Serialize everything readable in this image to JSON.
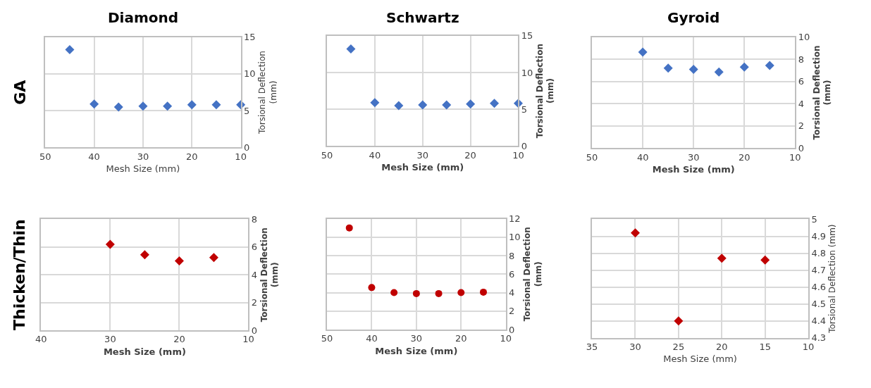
{
  "chart_data": [
    {
      "type": "scatter",
      "title": "Diamond",
      "annotations": [
        "GA"
      ],
      "xlabel": "Mesh Size (mm)",
      "ylabel": "Torsional Deflection\n(mm)",
      "x": [
        45,
        40,
        35,
        30,
        25,
        20,
        15,
        10
      ],
      "series": [
        {
          "color": "#4472c4",
          "values": [
            13.3,
            5.9,
            5.5,
            5.6,
            5.6,
            5.8,
            5.8,
            5.8
          ]
        }
      ],
      "xlim": [
        50,
        10
      ],
      "xticks": [
        50,
        40,
        30,
        20,
        10
      ],
      "ylim": [
        0,
        15
      ],
      "yticks": [
        0,
        5,
        10,
        15
      ],
      "grid": true,
      "marker": "diamond"
    },
    {
      "type": "scatter",
      "title": "Schwartz",
      "xlabel": "Mesh Size (mm)",
      "ylabel": "Torsional Deflection\n(mm)",
      "x": [
        45,
        40,
        35,
        30,
        25,
        20,
        15,
        10
      ],
      "series": [
        {
          "color": "#4472c4",
          "values": [
            13.2,
            5.9,
            5.5,
            5.6,
            5.6,
            5.7,
            5.8,
            5.8
          ]
        }
      ],
      "xlim": [
        50,
        10
      ],
      "xticks": [
        50,
        40,
        30,
        20,
        10
      ],
      "ylim": [
        0,
        15
      ],
      "yticks": [
        0,
        5,
        10,
        15
      ],
      "grid": true,
      "marker": "diamond"
    },
    {
      "type": "scatter",
      "title": "Gyroid",
      "xlabel": "Mesh Size (mm)",
      "ylabel": "Torsional Deflection\n(mm)",
      "x": [
        40,
        35,
        30,
        25,
        20,
        15
      ],
      "series": [
        {
          "color": "#4472c4",
          "values": [
            8.65,
            7.2,
            7.1,
            6.85,
            7.3,
            7.45
          ]
        }
      ],
      "xlim": [
        50,
        10
      ],
      "xticks": [
        50,
        40,
        30,
        20,
        10
      ],
      "ylim": [
        0,
        10
      ],
      "yticks": [
        0,
        2,
        4,
        6,
        8,
        10
      ],
      "grid": true,
      "marker": "diamond"
    },
    {
      "type": "scatter",
      "annotations": [
        "Thicken/Thin"
      ],
      "xlabel": "Mesh Size (mm)",
      "ylabel": "Torsional Deflection\n(mm)",
      "x": [
        30,
        25,
        20,
        15
      ],
      "series": [
        {
          "color": "#c00000",
          "values": [
            6.2,
            5.45,
            5.0,
            5.25
          ]
        }
      ],
      "xlim": [
        40,
        10
      ],
      "xticks": [
        40,
        30,
        20,
        10
      ],
      "ylim": [
        0,
        8
      ],
      "yticks": [
        0,
        2,
        4,
        6,
        8
      ],
      "grid": true,
      "marker": "diamond"
    },
    {
      "type": "scatter",
      "xlabel": "Mesh Size (mm)",
      "ylabel": "Torsional Deflection\n(mm)",
      "x": [
        45,
        40,
        35,
        30,
        25,
        20,
        15
      ],
      "series": [
        {
          "color": "#c00000",
          "values": [
            11.0,
            4.55,
            4.0,
            3.9,
            3.9,
            4.0,
            4.05
          ]
        }
      ],
      "xlim": [
        50,
        10
      ],
      "xticks": [
        50,
        40,
        30,
        20,
        10
      ],
      "ylim": [
        0,
        12
      ],
      "yticks": [
        0,
        2,
        4,
        6,
        8,
        10,
        12
      ],
      "grid": true,
      "marker": "circle"
    },
    {
      "type": "scatter",
      "xlabel": "Mesh Size (mm)",
      "ylabel": "Torsional Deflection (mm)",
      "x": [
        30,
        25,
        20,
        15
      ],
      "series": [
        {
          "color": "#c00000",
          "values": [
            4.92,
            4.4,
            4.77,
            4.76
          ]
        }
      ],
      "xlim": [
        35,
        10
      ],
      "xticks": [
        35,
        30,
        25,
        20,
        15,
        10
      ],
      "ylim": [
        4.3,
        5
      ],
      "yticks": [
        4.3,
        4.4,
        4.5,
        4.6,
        4.7,
        4.8,
        4.9,
        5
      ],
      "grid": true,
      "marker": "diamond"
    }
  ]
}
